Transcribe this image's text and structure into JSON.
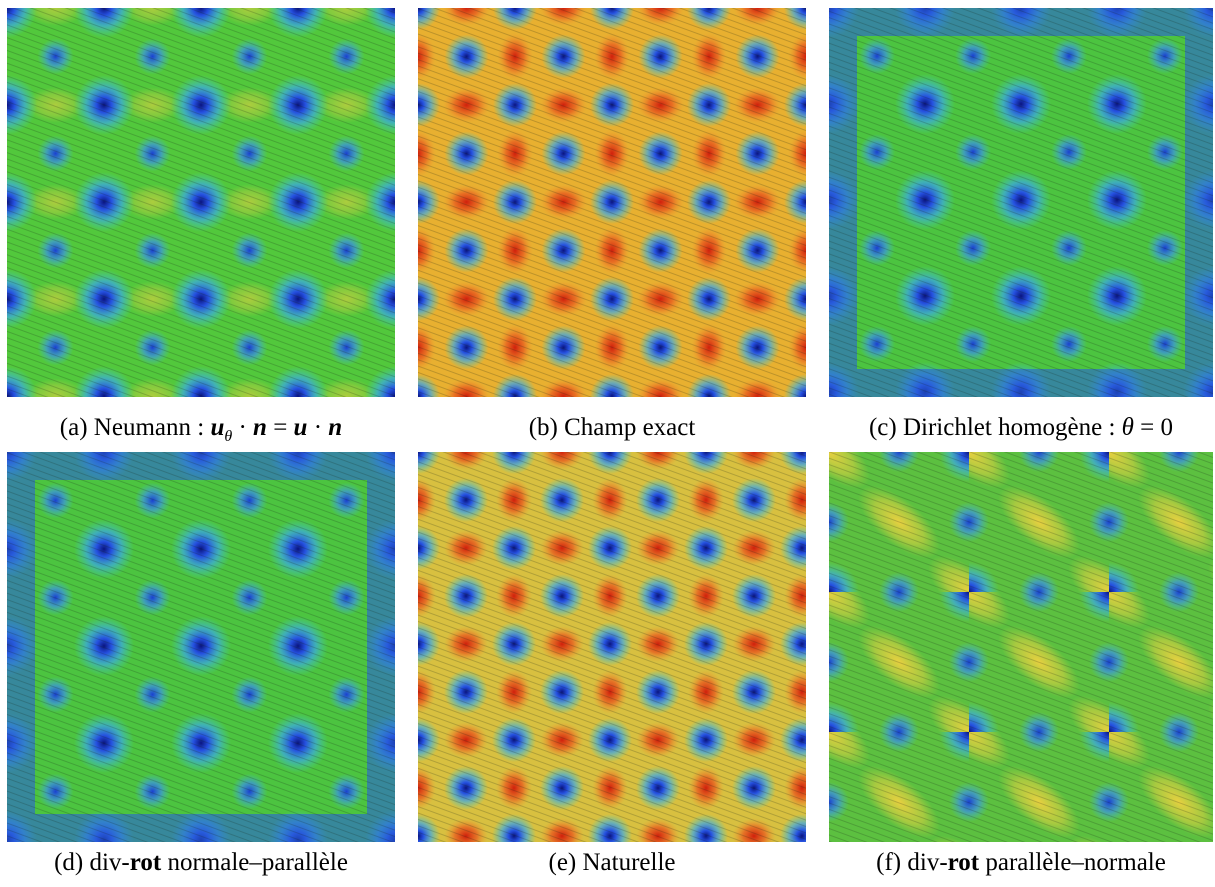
{
  "figures": [
    {
      "caption": [
        "(a) Neumann : ",
        "u",
        "θ",
        " · ",
        "n",
        " = ",
        "u",
        " · ",
        "n"
      ]
    },
    {
      "caption": [
        "(b) Champ exact"
      ]
    },
    {
      "caption": [
        "(c) Dirichlet homogène : ",
        "θ",
        " = 0"
      ]
    },
    {
      "caption": [
        "(d) div-",
        "rot",
        " normale–parallèle"
      ]
    },
    {
      "caption": [
        "(e) Naturelle"
      ]
    },
    {
      "caption": [
        "(f) div-",
        "rot",
        " parallèle–normale"
      ]
    }
  ]
}
